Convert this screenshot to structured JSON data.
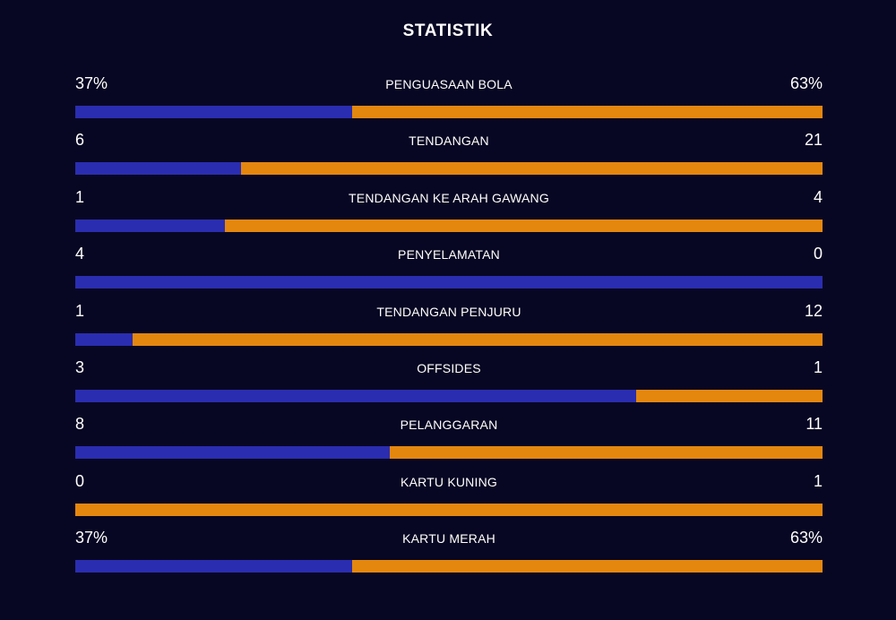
{
  "title": "STATISTIK",
  "colors": {
    "background": "#080723",
    "home": "#2a2db0",
    "away": "#e4870f"
  },
  "stats": [
    {
      "label": "PENGUASAAN BOLA",
      "home": "37%",
      "away": "63%",
      "home_share": 0.37
    },
    {
      "label": "TENDANGAN",
      "home": "6",
      "away": "21",
      "home_share": 0.222
    },
    {
      "label": "TENDANGAN KE ARAH GAWANG",
      "home": "1",
      "away": "4",
      "home_share": 0.2
    },
    {
      "label": "PENYELAMATAN",
      "home": "4",
      "away": "0",
      "home_share": 1.0
    },
    {
      "label": "TENDANGAN PENJURU",
      "home": "1",
      "away": "12",
      "home_share": 0.077
    },
    {
      "label": "OFFSIDES",
      "home": "3",
      "away": "1",
      "home_share": 0.75
    },
    {
      "label": "PELANGGARAN",
      "home": "8",
      "away": "11",
      "home_share": 0.421
    },
    {
      "label": "KARTU KUNING",
      "home": "0",
      "away": "1",
      "home_share": 0.0
    },
    {
      "label": "KARTU MERAH",
      "home": "37%",
      "away": "63%",
      "home_share": 0.37
    }
  ]
}
